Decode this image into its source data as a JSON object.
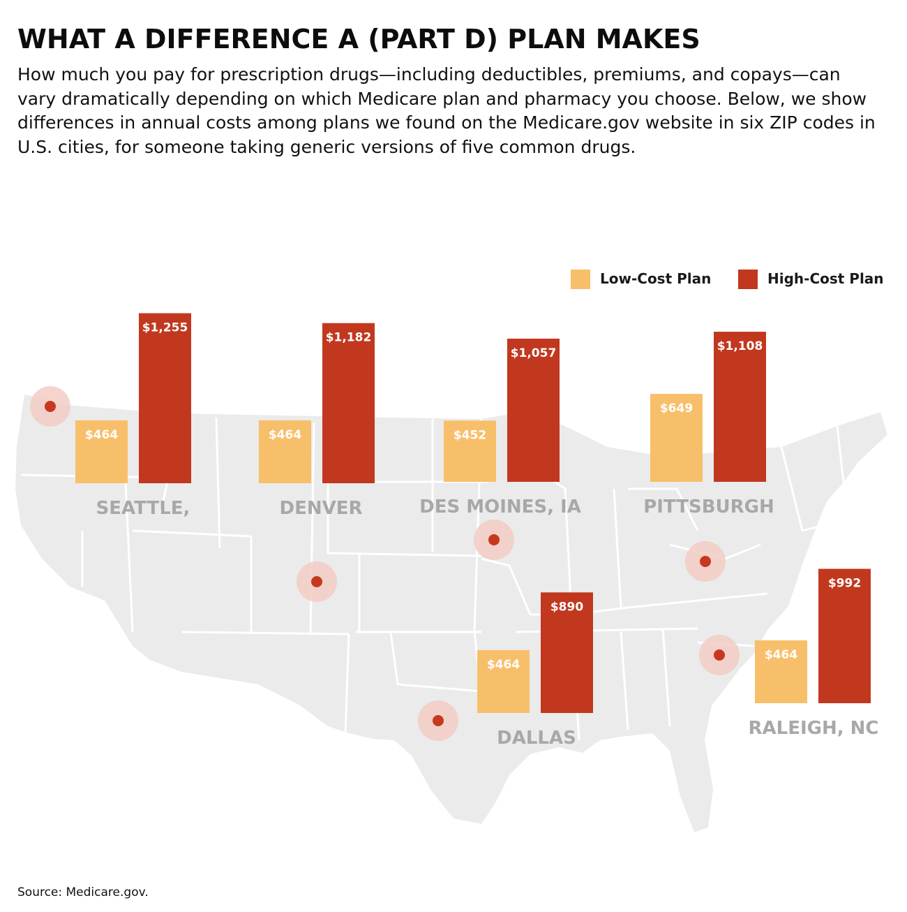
{
  "title": "WHAT A DIFFERENCE A (PART D) PLAN MAKES",
  "subtitle": "How much you pay for prescription drugs—including deductibles, premiums, and copays—can vary dramatically depending on which Medicare plan and pharmacy you choose. Below, we show differences in annual costs among plans we found on the Medicare.gov website in six ZIP codes in U.S. cities, for someone taking generic versions of five common drugs.",
  "source": "Source: Medicare.gov.",
  "colors": {
    "low": "#f8bf6a",
    "high": "#c1381f",
    "map_fill": "#ebebeb",
    "map_lines": "#ffffff",
    "city_label": "#a8a8a8",
    "marker": "#c6391f",
    "marker_halo": "#f2cdc4"
  },
  "chart_data": {
    "type": "bar",
    "title": "",
    "xlabel": "",
    "ylabel": "",
    "ylim": [
      0,
      1300
    ],
    "grid": false,
    "legend_position": "top-right",
    "categories": [
      "SEATTLE,",
      "DENVER",
      "DES MOINES, IA",
      "PITTSBURGH",
      "DALLAS",
      "RALEIGH, NC"
    ],
    "series": [
      {
        "name": "Low-Cost Plan",
        "values": [
          464,
          464,
          452,
          649,
          464,
          464
        ],
        "labels": [
          "$464",
          "$464",
          "$452",
          "$649",
          "$464",
          "$464"
        ]
      },
      {
        "name": "High-Cost Plan",
        "values": [
          1255,
          1182,
          1057,
          1108,
          890,
          992
        ],
        "labels": [
          "$1,255",
          "$1,182",
          "$1,057",
          "$1,108",
          "$890",
          "$992"
        ]
      }
    ]
  }
}
